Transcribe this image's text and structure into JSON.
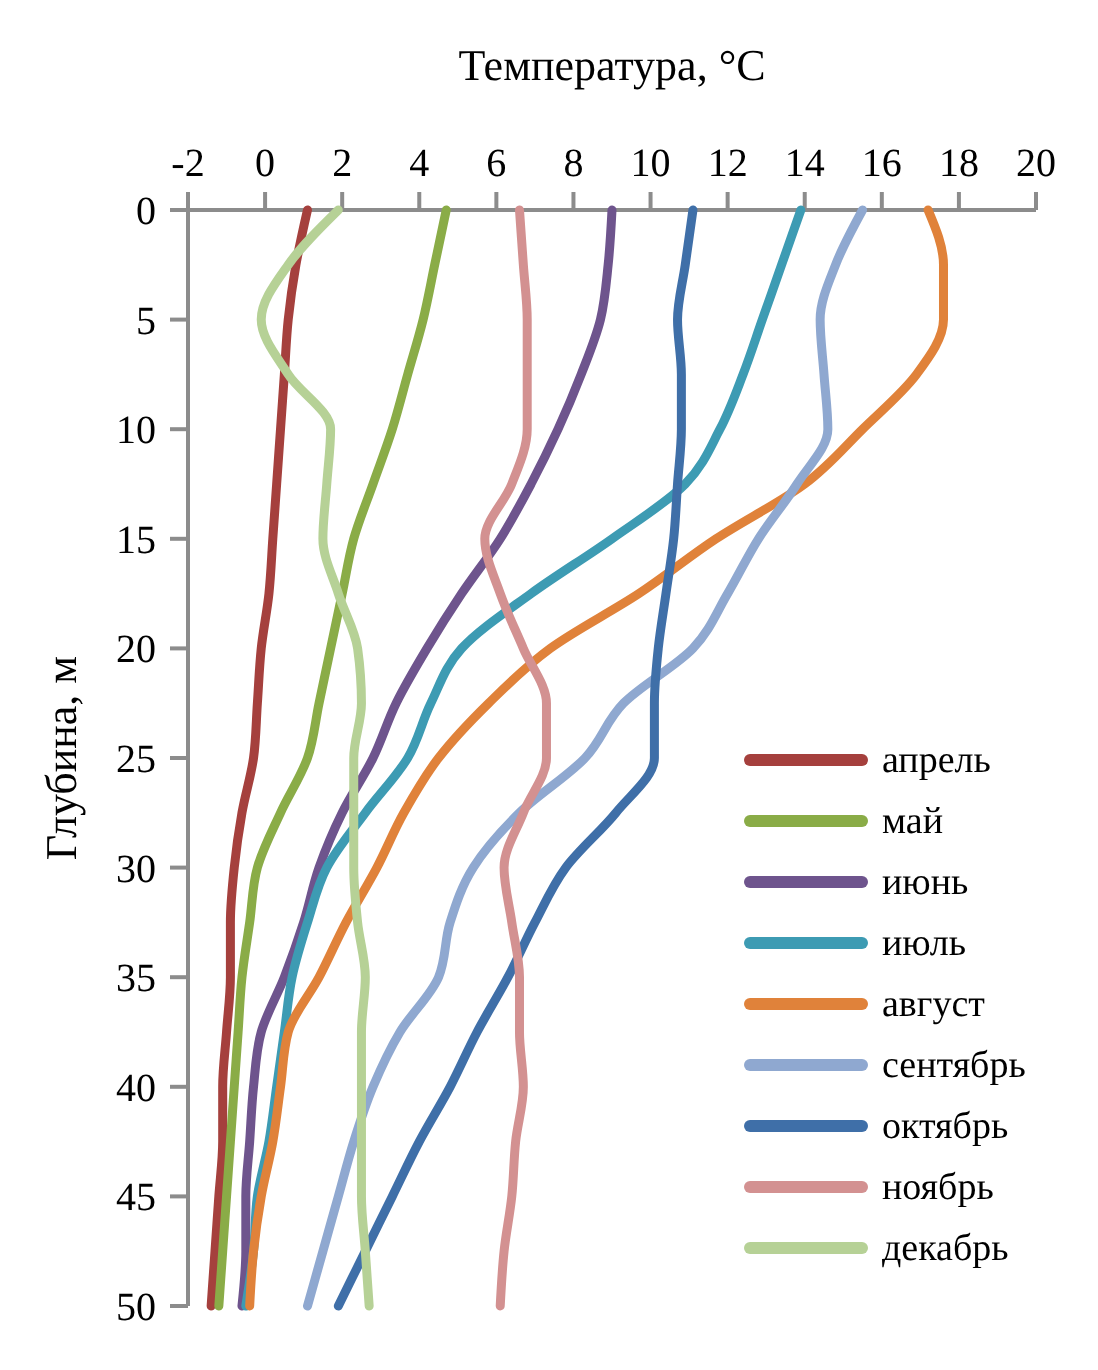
{
  "chart_data": {
    "type": "line",
    "xlabel": "Температура, °C",
    "ylabel": "Глубина, м",
    "xlim": [
      -2,
      20
    ],
    "xticks": [
      -2,
      0,
      2,
      4,
      6,
      8,
      10,
      12,
      14,
      16,
      18,
      20
    ],
    "ylim": [
      50,
      0
    ],
    "yticks": [
      0,
      5,
      10,
      15,
      20,
      25,
      30,
      35,
      40,
      45,
      50
    ],
    "grid": false,
    "legend": "bottom right",
    "marker": "none",
    "line_style": "solid",
    "series": [
      {
        "name": "апрель",
        "color": "#a5403d",
        "values": [
          0,
          2.5,
          5,
          7.5,
          10,
          12.5,
          15,
          17.5,
          20,
          22.5,
          25,
          27.5,
          30,
          32.5,
          35,
          37.5,
          40,
          42.5,
          45,
          47.5,
          50
        ],
        "x": [
          1.1,
          0.8,
          0.6,
          0.5,
          0.4,
          0.3,
          0.2,
          0.1,
          -0.1,
          -0.2,
          -0.3,
          -0.6,
          -0.8,
          -0.9,
          -0.9,
          -1.0,
          -1.1,
          -1.1,
          -1.2,
          -1.3,
          -1.4
        ]
      },
      {
        "name": "май",
        "color": "#8aac47",
        "values": [
          0,
          2.5,
          5,
          7.5,
          10,
          12.5,
          15,
          17.5,
          20,
          22.5,
          25,
          27.5,
          30,
          32.5,
          35,
          37.5,
          40,
          42.5,
          45,
          47.5,
          50
        ],
        "x": [
          4.7,
          4.4,
          4.1,
          3.7,
          3.3,
          2.8,
          2.3,
          2.0,
          1.7,
          1.4,
          1.1,
          0.4,
          -0.2,
          -0.4,
          -0.6,
          -0.7,
          -0.8,
          -0.9,
          -1.0,
          -1.1,
          -1.2
        ]
      },
      {
        "name": "июнь",
        "color": "#6e548d",
        "values": [
          0,
          2.5,
          5,
          7.5,
          10,
          12.5,
          15,
          17.5,
          20,
          22.5,
          25,
          27.5,
          30,
          32.5,
          35,
          37.5,
          40,
          42.5,
          45,
          47.5,
          50
        ],
        "x": [
          9.0,
          8.9,
          8.7,
          8.2,
          7.6,
          6.9,
          6.1,
          5.1,
          4.2,
          3.4,
          2.8,
          2.0,
          1.4,
          1.0,
          0.5,
          -0.1,
          -0.3,
          -0.4,
          -0.5,
          -0.5,
          -0.6
        ]
      },
      {
        "name": "июль",
        "color": "#3d9bb3",
        "values": [
          0,
          2.5,
          5,
          7.5,
          10,
          12.5,
          15,
          17.5,
          20,
          22.5,
          25,
          27.5,
          30,
          32.5,
          35,
          37.5,
          40,
          42.5,
          45,
          47.5,
          50
        ],
        "x": [
          13.9,
          13.4,
          12.9,
          12.4,
          11.8,
          10.9,
          9.0,
          6.9,
          5.1,
          4.3,
          3.7,
          2.6,
          1.6,
          1.1,
          0.7,
          0.5,
          0.3,
          0.1,
          -0.2,
          -0.3,
          -0.5
        ]
      },
      {
        "name": "август",
        "color": "#e0823a",
        "values": [
          0,
          2.5,
          5,
          7.5,
          10,
          12.5,
          15,
          17.5,
          20,
          22.5,
          25,
          27.5,
          30,
          32.5,
          35,
          37.5,
          40,
          42.5,
          45,
          47.5,
          50
        ],
        "x": [
          17.2,
          17.6,
          17.6,
          16.9,
          15.5,
          14.0,
          11.7,
          9.7,
          7.4,
          5.8,
          4.5,
          3.6,
          2.9,
          2.1,
          1.4,
          0.6,
          0.4,
          0.2,
          -0.1,
          -0.3,
          -0.4
        ]
      },
      {
        "name": "сентябрь",
        "color": "#8fa8d0",
        "values": [
          0,
          2.5,
          5,
          7.5,
          10,
          12.5,
          15,
          17.5,
          20,
          22.5,
          25,
          27.5,
          30,
          32.5,
          35,
          37.5,
          40,
          42.5,
          45,
          47.5,
          50
        ],
        "x": [
          15.5,
          14.8,
          14.4,
          14.5,
          14.6,
          13.8,
          12.8,
          12.0,
          11.1,
          9.3,
          8.3,
          6.6,
          5.4,
          4.8,
          4.5,
          3.5,
          2.8,
          2.3,
          1.9,
          1.5,
          1.1
        ]
      },
      {
        "name": "октябрь",
        "color": "#3f6fa8",
        "values": [
          0,
          2.5,
          5,
          7.5,
          10,
          12.5,
          15,
          17.5,
          20,
          22.5,
          25,
          27.5,
          30,
          32.5,
          35,
          37.5,
          40,
          42.5,
          45,
          47.5,
          50
        ],
        "x": [
          11.1,
          10.9,
          10.7,
          10.8,
          10.8,
          10.7,
          10.6,
          10.4,
          10.2,
          10.1,
          10.1,
          9.1,
          7.8,
          7.0,
          6.3,
          5.5,
          4.8,
          4.0,
          3.3,
          2.6,
          1.9
        ]
      },
      {
        "name": "ноябрь",
        "color": "#d39191",
        "values": [
          0,
          2.5,
          5,
          7.5,
          10,
          12.5,
          15,
          17.5,
          20,
          22.5,
          25,
          27.5,
          30,
          32.5,
          35,
          37.5,
          40,
          42.5,
          45,
          47.5,
          50
        ],
        "x": [
          6.6,
          6.7,
          6.8,
          6.8,
          6.8,
          6.4,
          5.7,
          6.1,
          6.7,
          7.3,
          7.3,
          6.7,
          6.2,
          6.4,
          6.6,
          6.6,
          6.7,
          6.5,
          6.4,
          6.2,
          6.1
        ]
      },
      {
        "name": "декабрь",
        "color": "#b6d196",
        "values": [
          0,
          2.5,
          5,
          7.5,
          10,
          12.5,
          15,
          17.5,
          20,
          22.5,
          25,
          27.5,
          30,
          32.5,
          35,
          37.5,
          40,
          42.5,
          45,
          47.5,
          50
        ],
        "x": [
          1.9,
          0.6,
          -0.1,
          0.6,
          1.7,
          1.6,
          1.5,
          1.9,
          2.4,
          2.5,
          2.3,
          2.3,
          2.3,
          2.4,
          2.6,
          2.5,
          2.5,
          2.5,
          2.5,
          2.6,
          2.7
        ]
      }
    ]
  }
}
